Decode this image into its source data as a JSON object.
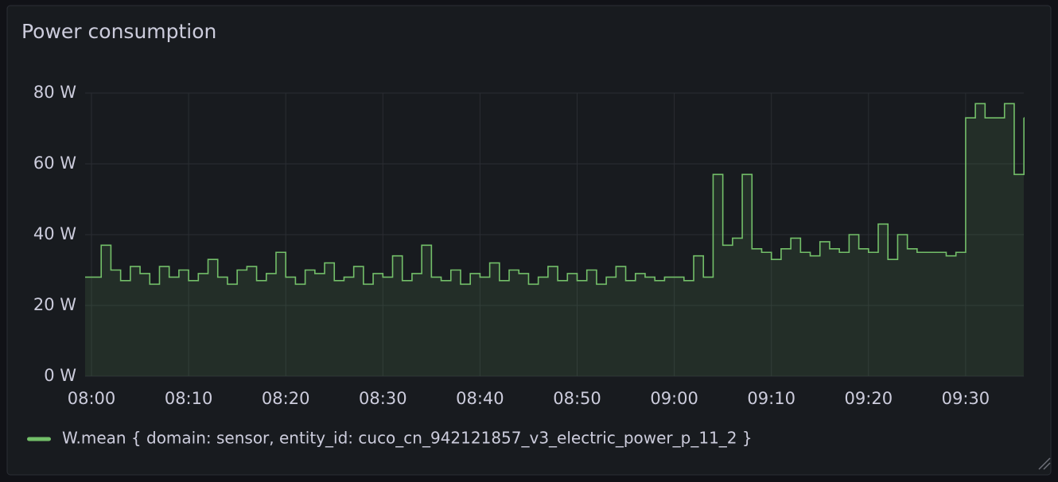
{
  "chart_data": {
    "type": "line",
    "title": "Power consumption",
    "x": [
      "08:00",
      "08:01",
      "08:02",
      "08:03",
      "08:04",
      "08:05",
      "08:06",
      "08:07",
      "08:08",
      "08:09",
      "08:10",
      "08:11",
      "08:12",
      "08:13",
      "08:14",
      "08:15",
      "08:16",
      "08:17",
      "08:18",
      "08:19",
      "08:20",
      "08:21",
      "08:22",
      "08:23",
      "08:24",
      "08:25",
      "08:26",
      "08:27",
      "08:28",
      "08:29",
      "08:30",
      "08:31",
      "08:32",
      "08:33",
      "08:34",
      "08:35",
      "08:36",
      "08:37",
      "08:38",
      "08:39",
      "08:40",
      "08:41",
      "08:42",
      "08:43",
      "08:44",
      "08:45",
      "08:46",
      "08:47",
      "08:48",
      "08:49",
      "08:50",
      "08:51",
      "08:52",
      "08:53",
      "08:54",
      "08:55",
      "08:56",
      "08:57",
      "08:58",
      "08:59",
      "09:00",
      "09:01",
      "09:02",
      "09:03",
      "09:04",
      "09:05",
      "09:06",
      "09:07",
      "09:08",
      "09:09",
      "09:10",
      "09:11",
      "09:12",
      "09:13",
      "09:14",
      "09:15",
      "09:16",
      "09:17",
      "09:18",
      "09:19",
      "09:20",
      "09:21",
      "09:22",
      "09:23",
      "09:24",
      "09:25",
      "09:26",
      "09:27",
      "09:28",
      "09:29",
      "09:30",
      "09:31",
      "09:32",
      "09:33",
      "09:34",
      "09:35",
      "09:36"
    ],
    "series": [
      {
        "name": "W.mean { domain: sensor, entity_id: cuco_cn_942121857_v3_electric_power_p_11_2 }",
        "color": "#73bf69",
        "values": [
          28,
          37,
          30,
          27,
          31,
          29,
          26,
          31,
          28,
          30,
          27,
          29,
          33,
          28,
          26,
          30,
          31,
          27,
          29,
          35,
          28,
          26,
          30,
          29,
          32,
          27,
          28,
          31,
          26,
          29,
          28,
          34,
          27,
          29,
          37,
          28,
          27,
          30,
          26,
          29,
          28,
          32,
          27,
          30,
          29,
          26,
          28,
          31,
          27,
          29,
          27,
          30,
          26,
          28,
          31,
          27,
          29,
          28,
          27,
          28,
          28,
          27,
          34,
          28,
          57,
          37,
          39,
          57,
          36,
          35,
          33,
          36,
          39,
          35,
          34,
          38,
          36,
          35,
          40,
          36,
          35,
          43,
          33,
          40,
          36,
          35,
          35,
          35,
          34,
          35,
          73,
          77,
          73,
          73,
          77,
          57,
          73
        ]
      }
    ],
    "xticks": [
      "08:00",
      "08:10",
      "08:20",
      "08:30",
      "08:40",
      "08:50",
      "09:00",
      "09:10",
      "09:20",
      "09:30"
    ],
    "ylim": [
      0,
      80
    ],
    "yticks": [
      {
        "value": 0,
        "label": "0 W"
      },
      {
        "value": 20,
        "label": "20 W"
      },
      {
        "value": 40,
        "label": "40 W"
      },
      {
        "value": 60,
        "label": "60 W"
      },
      {
        "value": 80,
        "label": "80 W"
      }
    ],
    "grid": true,
    "legend": "bottom"
  }
}
